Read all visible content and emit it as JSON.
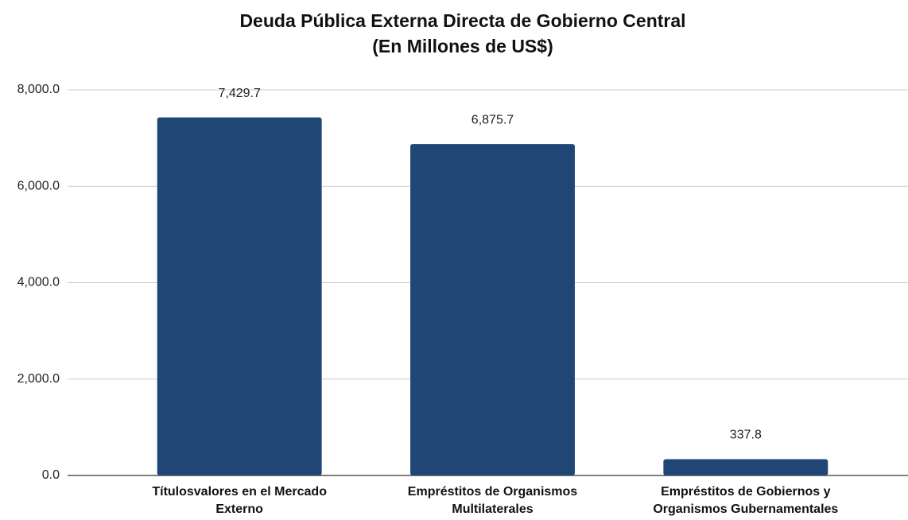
{
  "chart_data": {
    "type": "bar",
    "title": "Deuda Pública Externa Directa de Gobierno Central",
    "subtitle": "(En Millones de US$)",
    "categories": [
      "Títulosvalores en el Mercado Externo",
      "Empréstitos de Organismos Multilaterales",
      "Empréstitos de Gobiernos y Organismos Gubernamentales"
    ],
    "values": [
      7429.7,
      6875.7,
      337.8
    ],
    "value_labels": [
      "7,429.7",
      "6,875.7",
      "337.8"
    ],
    "color": "#1f4675",
    "ylim": [
      0,
      8000
    ],
    "yticks": [
      {
        "value": 0,
        "label": "0.0"
      },
      {
        "value": 2000,
        "label": "2,000.0"
      },
      {
        "value": 4000,
        "label": "4,000.0"
      },
      {
        "value": 6000,
        "label": "6,000.0"
      },
      {
        "value": 8000,
        "label": "8,000.0"
      }
    ],
    "grid": true
  }
}
